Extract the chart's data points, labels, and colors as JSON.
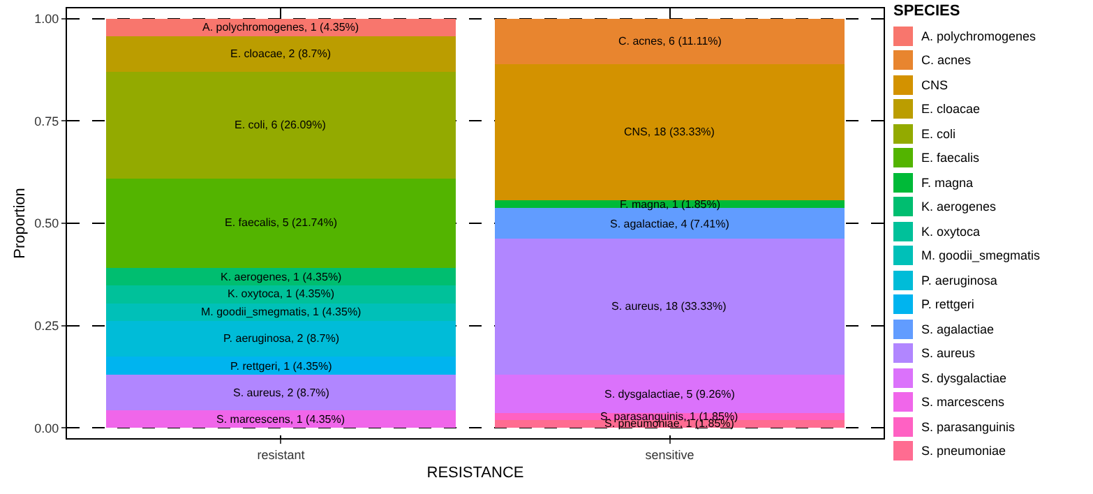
{
  "chart_data": {
    "type": "bar",
    "stacked": true,
    "xlabel": "RESISTANCE",
    "ylabel": "Proportion",
    "legend_title": "SPECIES",
    "legend": "right",
    "grid": true,
    "categories": [
      "resistant",
      "sensitive"
    ],
    "ylim": [
      -0.025,
      1.025
    ],
    "yticks": [
      {
        "value": 0,
        "label": "0.00"
      },
      {
        "value": 0.25,
        "label": "0.25"
      },
      {
        "value": 0.5,
        "label": "0.50"
      },
      {
        "value": 0.75,
        "label": "0.75"
      },
      {
        "value": 1,
        "label": "1.00"
      }
    ],
    "series": [
      {
        "name": "S. pneumoniae",
        "color": "#ff6c91",
        "values": [
          null,
          0.0185
        ],
        "value_labels": [
          null,
          "S. pneumoniae, 1 (1.85%)"
        ]
      },
      {
        "name": "S. parasanguinis",
        "color": "#ff61c3",
        "values": [
          null,
          0.0185
        ],
        "value_labels": [
          null,
          "S. parasanguinis, 1 (1.85%)"
        ]
      },
      {
        "name": "S. marcescens",
        "color": "#f066ea",
        "values": [
          0.0435,
          null
        ],
        "value_labels": [
          "S. marcescens, 1 (4.35%)",
          null
        ]
      },
      {
        "name": "S. dysgalactiae",
        "color": "#db72fb",
        "values": [
          null,
          0.0926
        ],
        "value_labels": [
          null,
          "S. dysgalactiae, 5 (9.26%)"
        ]
      },
      {
        "name": "S. aureus",
        "color": "#b186ff",
        "values": [
          0.087,
          0.3333
        ],
        "value_labels": [
          "S. aureus, 2 (8.7%)",
          "S. aureus, 18 (33.33%)"
        ]
      },
      {
        "name": "S. agalactiae",
        "color": "#619cff",
        "values": [
          null,
          0.0741
        ],
        "value_labels": [
          null,
          "S. agalactiae, 4 (7.41%)"
        ]
      },
      {
        "name": "P. rettgeri",
        "color": "#00b4ef",
        "values": [
          0.0435,
          null
        ],
        "value_labels": [
          "P. rettgeri, 1 (4.35%)",
          null
        ]
      },
      {
        "name": "P. aeruginosa",
        "color": "#00bcd8",
        "values": [
          0.087,
          null
        ],
        "value_labels": [
          "P. aeruginosa, 2 (8.7%)",
          null
        ]
      },
      {
        "name": "M. goodii_smegmatis",
        "color": "#00c0b8",
        "values": [
          0.0435,
          null
        ],
        "value_labels": [
          "M. goodii_smegmatis, 1 (4.35%)",
          null
        ]
      },
      {
        "name": "K. oxytoca",
        "color": "#00c19a",
        "values": [
          0.0435,
          null
        ],
        "value_labels": [
          "K. oxytoca, 1 (4.35%)",
          null
        ]
      },
      {
        "name": "K. aerogenes",
        "color": "#00be70",
        "values": [
          0.0435,
          null
        ],
        "value_labels": [
          "K. aerogenes, 1 (4.35%)",
          null
        ]
      },
      {
        "name": "F. magna",
        "color": "#00ba38",
        "values": [
          null,
          0.0185
        ],
        "value_labels": [
          null,
          "F. magna, 1 (1.85%)"
        ]
      },
      {
        "name": "E. faecalis",
        "color": "#53b400",
        "values": [
          0.2174,
          null
        ],
        "value_labels": [
          "E. faecalis, 5 (21.74%)",
          null
        ]
      },
      {
        "name": "E. coli",
        "color": "#93aa00",
        "values": [
          0.2609,
          null
        ],
        "value_labels": [
          "E. coli, 6 (26.09%)",
          null
        ]
      },
      {
        "name": "E. cloacae",
        "color": "#bb9d00",
        "values": [
          0.087,
          null
        ],
        "value_labels": [
          "E. cloacae, 2 (8.7%)",
          null
        ]
      },
      {
        "name": "CNS",
        "color": "#d39200",
        "values": [
          null,
          0.3333
        ],
        "value_labels": [
          null,
          "CNS, 18 (33.33%)"
        ]
      },
      {
        "name": "C. acnes",
        "color": "#e8852f",
        "values": [
          null,
          0.1111
        ],
        "value_labels": [
          null,
          "C. acnes, 6 (11.11%)"
        ]
      },
      {
        "name": "A. polychromogenes",
        "color": "#f8766d",
        "values": [
          0.0435,
          null
        ],
        "value_labels": [
          "A. polychromogenes, 1 (4.35%)",
          null
        ]
      }
    ]
  }
}
